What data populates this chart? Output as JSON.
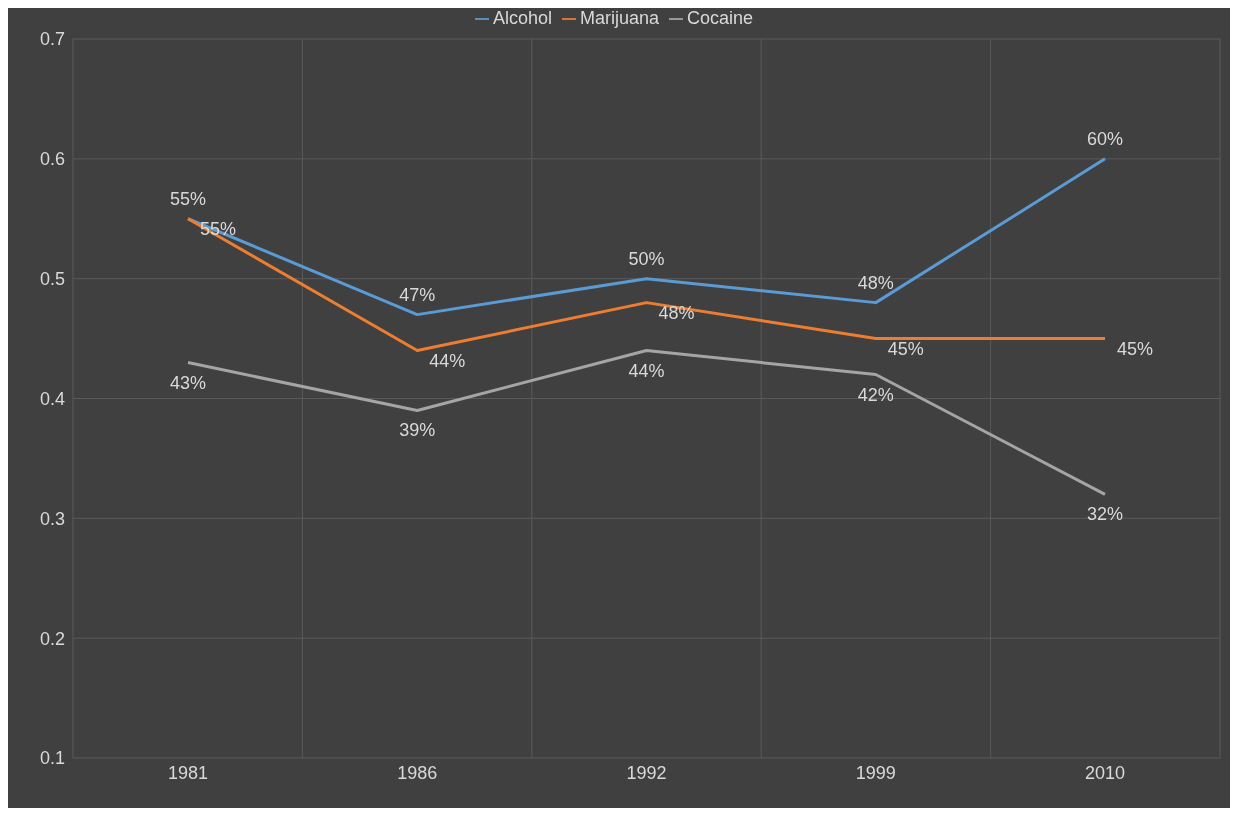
{
  "chart_data": {
    "type": "line",
    "categories": [
      "1981",
      "1986",
      "1992",
      "1999",
      "2010"
    ],
    "series": [
      {
        "name": "Alcohol",
        "color": "#5b9bd5",
        "values": [
          0.55,
          0.47,
          0.5,
          0.48,
          0.6
        ],
        "value_labels": [
          "55%",
          "47%",
          "50%",
          "48%",
          "60%"
        ]
      },
      {
        "name": "Marijuana",
        "color": "#ed7d31",
        "values": [
          0.55,
          0.44,
          0.48,
          0.45,
          0.45
        ],
        "value_labels": [
          "55%",
          "44%",
          "48%",
          "45%",
          "45%"
        ]
      },
      {
        "name": "Cocaine",
        "color": "#a5a5a5",
        "values": [
          0.43,
          0.39,
          0.44,
          0.42,
          0.32
        ],
        "value_labels": [
          "43%",
          "39%",
          "44%",
          "42%",
          "32%"
        ]
      }
    ],
    "ylim": [
      0.1,
      0.7
    ],
    "yticks": [
      0.1,
      0.2,
      0.3,
      0.4,
      0.5,
      0.6,
      0.7
    ],
    "grid": true,
    "legend": "top",
    "marker": "none",
    "line_style": "solid"
  }
}
